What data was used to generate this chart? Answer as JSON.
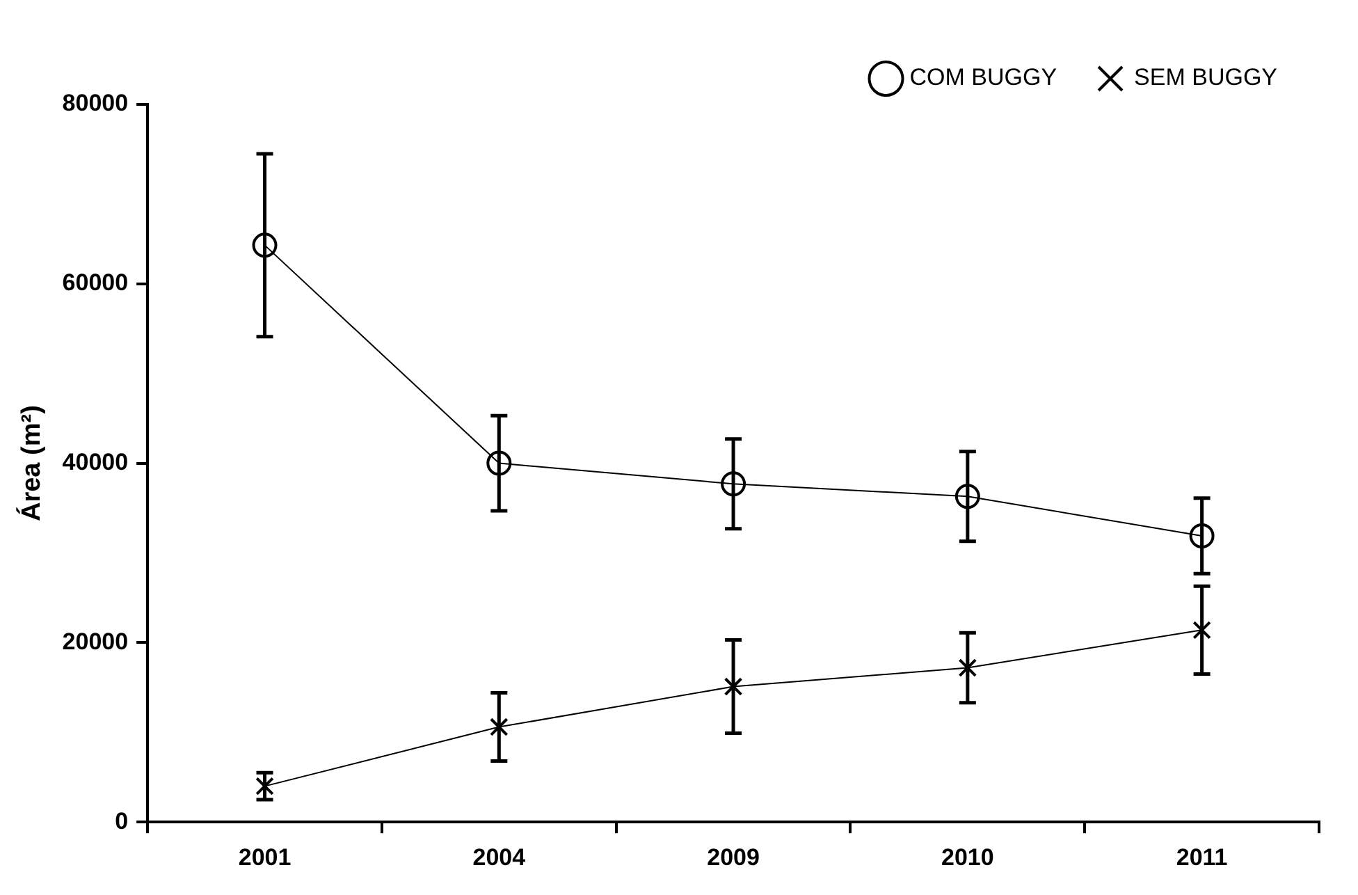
{
  "chart_data": {
    "type": "line",
    "ylabel": "Área (m²)",
    "categories": [
      "2001",
      "2004",
      "2009",
      "2010",
      "2011"
    ],
    "series": [
      {
        "name": "COM BUGGY",
        "color": "#000000",
        "marker": "circle",
        "values": [
          64300,
          40000,
          37700,
          36300,
          31900
        ],
        "errors": [
          10200,
          5300,
          5000,
          5000,
          4200
        ]
      },
      {
        "name": "SEM BUGGY",
        "color": "#000000",
        "marker": "cross",
        "values": [
          4000,
          10600,
          15100,
          17200,
          21400
        ],
        "errors": [
          1500,
          3800,
          5200,
          3900,
          4900
        ]
      }
    ],
    "ylim": [
      0,
      80000
    ],
    "yticks": [
      0,
      20000,
      40000,
      60000,
      80000
    ],
    "grid": false,
    "legend": "top right"
  }
}
